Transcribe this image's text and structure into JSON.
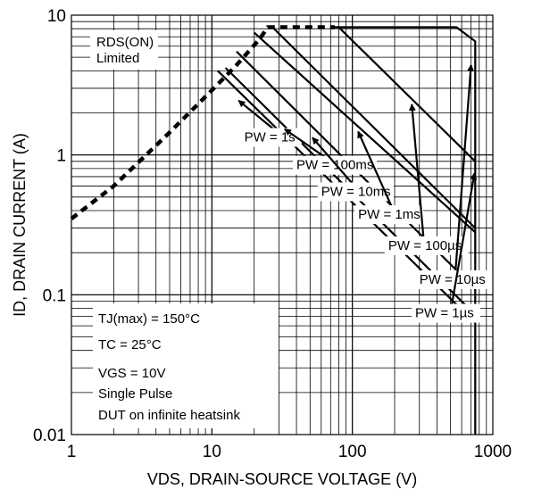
{
  "chart_data": {
    "type": "line",
    "scale": {
      "x": "log",
      "y": "log"
    },
    "xlim": [
      1,
      1000
    ],
    "ylim": [
      0.01,
      10
    ],
    "grid": true,
    "xlabel": "VDS, DRAIN-SOURCE VOLTAGE (V)",
    "ylabel": "ID, DRAIN CURRENT (A)",
    "x_ticks": [
      "1",
      "10",
      "100",
      "1000"
    ],
    "y_ticks": [
      "0.01",
      "0.1",
      "1",
      "10"
    ],
    "annotations": {
      "rds_limited": [
        "RDS(ON)",
        "Limited"
      ],
      "conditions": [
        "TJ(max) = 150°C",
        "TC = 25°C",
        "VGS = 10V",
        "Single Pulse",
        "DUT on infinite heatsink"
      ]
    },
    "series": [
      {
        "name": "RDS(ON) Limited",
        "style": "dashed",
        "x": [
          1,
          2,
          5,
          10,
          15,
          22,
          25,
          75
        ],
        "y": [
          0.35,
          0.6,
          1.45,
          2.9,
          4.4,
          6.8,
          8.2,
          8.2
        ]
      },
      {
        "name": "PW = 1s",
        "x": [
          11,
          750
        ],
        "y": [
          4.0,
          0.063
        ]
      },
      {
        "name": "PW = 100ms",
        "x": [
          12.5,
          750
        ],
        "y": [
          4.2,
          0.072
        ]
      },
      {
        "name": "PW = 10ms",
        "x": [
          15,
          750
        ],
        "y": [
          5.5,
          0.11
        ]
      },
      {
        "name": "PW = 1ms",
        "x": [
          20,
          750
        ],
        "y": [
          7.5,
          0.28
        ]
      },
      {
        "name": "PW = 100µs",
        "x": [
          25,
          27,
          750
        ],
        "y": [
          8.2,
          8.2,
          0.3
        ]
      },
      {
        "name": "PW = 10µs",
        "x": [
          75,
          80,
          750
        ],
        "y": [
          8.2,
          8.2,
          0.9
        ]
      },
      {
        "name": "PW = 1µs",
        "x": [
          75,
          550,
          750,
          750
        ],
        "y": [
          8.2,
          8.2,
          6.5,
          0.01
        ]
      }
    ],
    "callouts": [
      {
        "label": "PW = 1s",
        "label_x": 17,
        "label_y": 1.25,
        "arrow_to_x": 15.5,
        "arrow_to_y": 2.45
      },
      {
        "label": "PW = 100ms",
        "label_x": 40,
        "label_y": 0.79,
        "arrow_to_x": 33,
        "arrow_to_y": 1.53
      },
      {
        "label": "PW = 10ms",
        "label_x": 60,
        "label_y": 0.51,
        "arrow_to_x": 52,
        "arrow_to_y": 1.33
      },
      {
        "label": "PW = 1ms",
        "label_x": 110,
        "label_y": 0.35,
        "arrow_to_x": 110,
        "arrow_to_y": 1.47
      },
      {
        "label": "PW = 100µs",
        "label_x": 180,
        "label_y": 0.21,
        "arrow_to_x": 265,
        "arrow_to_y": 2.3
      },
      {
        "label": "PW = 10µs",
        "label_x": 300,
        "label_y": 0.12,
        "arrow_to_x": 700,
        "arrow_to_y": 4.4
      },
      {
        "label": "PW = 1µs",
        "label_x": 280,
        "label_y": 0.069,
        "arrow_to_x": 740,
        "arrow_to_y": 0.74
      }
    ]
  }
}
